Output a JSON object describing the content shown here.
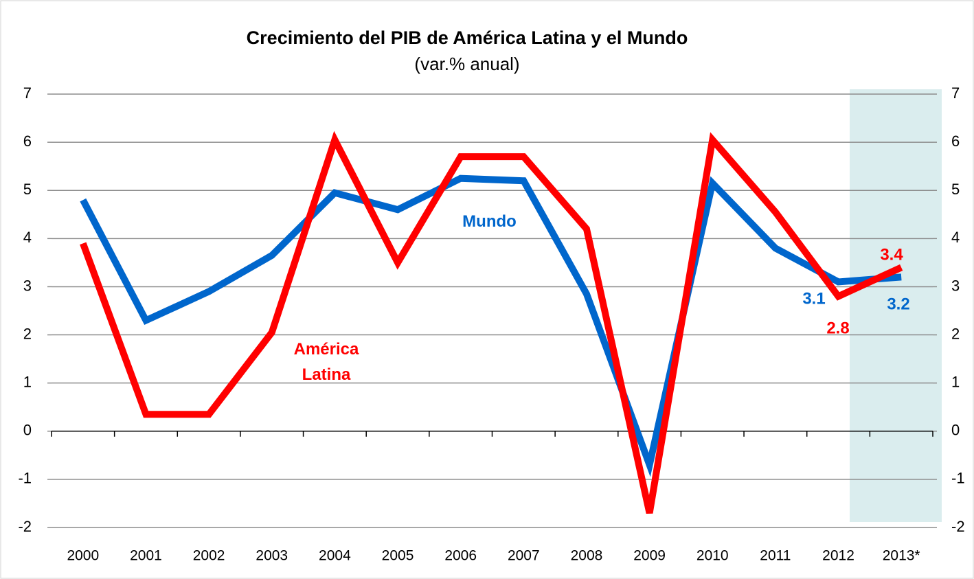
{
  "chart_data": {
    "type": "line",
    "title": "Crecimiento del PIB de América Latina y el Mundo",
    "subtitle": "(var.% anual)",
    "categories": [
      "2000",
      "2001",
      "2002",
      "2003",
      "2004",
      "2005",
      "2006",
      "2007",
      "2008",
      "2009",
      "2010",
      "2011",
      "2012",
      "2013*"
    ],
    "series": [
      {
        "name": "Mundo",
        "color": "#0066cc",
        "values": [
          4.8,
          2.3,
          2.9,
          3.65,
          4.95,
          4.6,
          5.25,
          5.2,
          2.85,
          -0.7,
          5.15,
          3.8,
          3.1,
          3.2
        ]
      },
      {
        "name": "América Latina",
        "color": "#ff0000",
        "values": [
          3.9,
          0.35,
          0.35,
          2.05,
          6.05,
          3.5,
          5.7,
          5.7,
          4.2,
          -1.7,
          6.05,
          4.55,
          2.8,
          3.4
        ]
      }
    ],
    "ylim": [
      -2,
      7
    ],
    "yticks": [
      -2,
      -1,
      0,
      1,
      2,
      3,
      4,
      5,
      6,
      7
    ],
    "y2lim": [
      -2,
      7
    ],
    "y2ticks": [
      -2,
      -1,
      0,
      1,
      2,
      3,
      4,
      5,
      6,
      7
    ],
    "grid": true
  }
}
